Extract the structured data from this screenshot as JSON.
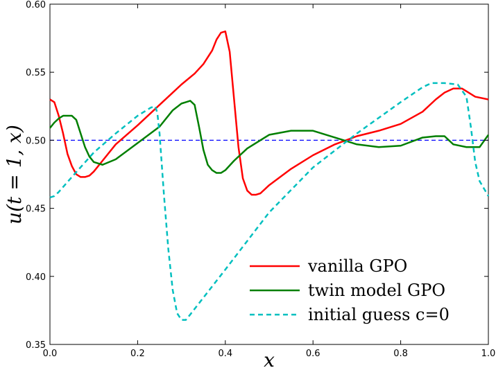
{
  "chart_data": {
    "type": "line",
    "title": "",
    "xlabel": "x",
    "ylabel": "u(t = 1, x)",
    "xlim": [
      0.0,
      1.0
    ],
    "ylim": [
      0.35,
      0.6
    ],
    "xticks": [
      "0.0",
      "0.2",
      "0.4",
      "0.6",
      "0.8",
      "1.0"
    ],
    "yticks": [
      "0.35",
      "0.40",
      "0.45",
      "0.50",
      "0.55",
      "0.60"
    ],
    "grid": false,
    "legend_position": "bottom-right",
    "reference_line": {
      "y": 0.5,
      "color": "#0000ff",
      "style": "dashed"
    },
    "series": [
      {
        "name": "vanilla GPO",
        "color": "#ff0000",
        "style": "solid",
        "x": [
          0.0,
          0.01,
          0.02,
          0.03,
          0.04,
          0.05,
          0.06,
          0.07,
          0.08,
          0.09,
          0.1,
          0.12,
          0.15,
          0.2,
          0.25,
          0.3,
          0.33,
          0.35,
          0.37,
          0.38,
          0.39,
          0.4,
          0.41,
          0.42,
          0.43,
          0.44,
          0.45,
          0.46,
          0.47,
          0.48,
          0.5,
          0.55,
          0.6,
          0.65,
          0.7,
          0.75,
          0.8,
          0.85,
          0.88,
          0.9,
          0.92,
          0.94,
          0.95,
          0.97,
          1.0
        ],
        "y": [
          0.53,
          0.528,
          0.518,
          0.505,
          0.49,
          0.481,
          0.475,
          0.473,
          0.473,
          0.474,
          0.477,
          0.485,
          0.497,
          0.511,
          0.526,
          0.541,
          0.549,
          0.556,
          0.566,
          0.574,
          0.579,
          0.58,
          0.565,
          0.53,
          0.495,
          0.472,
          0.463,
          0.46,
          0.46,
          0.461,
          0.467,
          0.479,
          0.489,
          0.497,
          0.503,
          0.507,
          0.512,
          0.521,
          0.53,
          0.535,
          0.538,
          0.538,
          0.536,
          0.532,
          0.53
        ]
      },
      {
        "name": "twin model GPO",
        "color": "#007f00",
        "style": "solid",
        "x": [
          0.0,
          0.01,
          0.02,
          0.03,
          0.04,
          0.05,
          0.06,
          0.07,
          0.08,
          0.09,
          0.1,
          0.12,
          0.15,
          0.2,
          0.25,
          0.28,
          0.3,
          0.31,
          0.32,
          0.33,
          0.34,
          0.35,
          0.36,
          0.37,
          0.38,
          0.39,
          0.4,
          0.42,
          0.45,
          0.5,
          0.55,
          0.6,
          0.65,
          0.7,
          0.75,
          0.8,
          0.85,
          0.88,
          0.9,
          0.92,
          0.95,
          0.98,
          1.0
        ],
        "y": [
          0.509,
          0.513,
          0.516,
          0.518,
          0.518,
          0.518,
          0.515,
          0.505,
          0.495,
          0.488,
          0.484,
          0.482,
          0.486,
          0.498,
          0.51,
          0.522,
          0.527,
          0.528,
          0.529,
          0.526,
          0.51,
          0.493,
          0.482,
          0.478,
          0.476,
          0.476,
          0.478,
          0.485,
          0.494,
          0.504,
          0.507,
          0.507,
          0.502,
          0.497,
          0.495,
          0.496,
          0.502,
          0.503,
          0.503,
          0.497,
          0.495,
          0.495,
          0.504
        ]
      },
      {
        "name": "initial guess c=0",
        "color": "#00bfbf",
        "style": "dashed",
        "x": [
          0.0,
          0.01,
          0.02,
          0.05,
          0.1,
          0.15,
          0.2,
          0.23,
          0.24,
          0.245,
          0.25,
          0.26,
          0.27,
          0.28,
          0.29,
          0.3,
          0.31,
          0.32,
          0.4,
          0.5,
          0.6,
          0.7,
          0.8,
          0.85,
          0.87,
          0.9,
          0.93,
          0.95,
          0.96,
          0.97,
          0.98,
          1.0
        ],
        "y": [
          0.458,
          0.459,
          0.462,
          0.473,
          0.491,
          0.505,
          0.518,
          0.524,
          0.525,
          0.52,
          0.505,
          0.46,
          0.42,
          0.39,
          0.373,
          0.368,
          0.368,
          0.372,
          0.405,
          0.447,
          0.48,
          0.505,
          0.528,
          0.539,
          0.542,
          0.542,
          0.541,
          0.532,
          0.51,
          0.484,
          0.47,
          0.459
        ]
      }
    ]
  }
}
